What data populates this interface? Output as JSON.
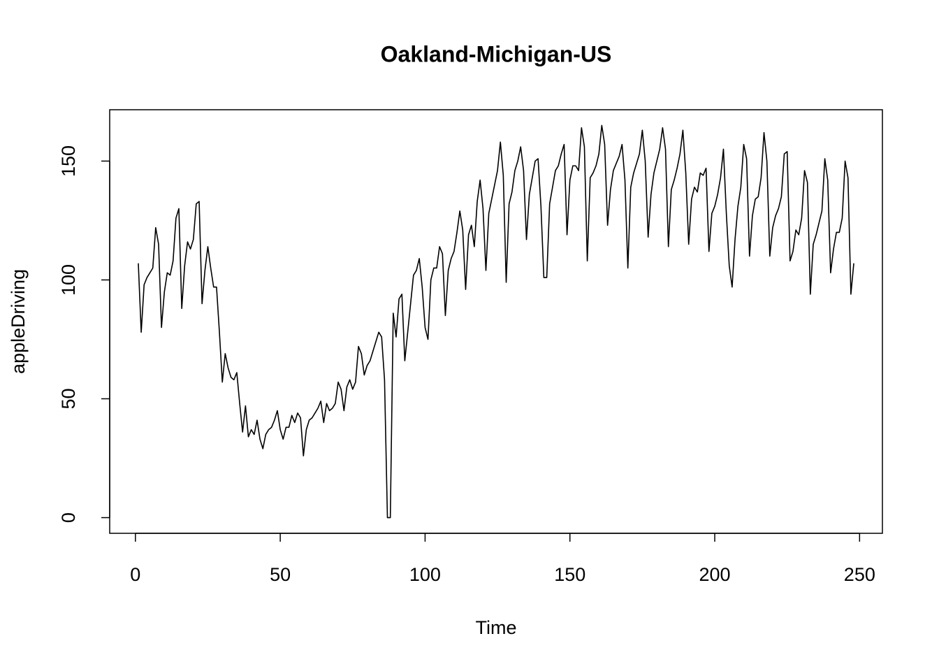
{
  "chart_data": {
    "type": "line",
    "title": "Oakland-Michigan-US",
    "x_label": "Time",
    "y_label": "appleDriving",
    "color": "#000000",
    "x": [
      1,
      2,
      3,
      4,
      5,
      6,
      7,
      8,
      9,
      10,
      11,
      12,
      13,
      14,
      15,
      16,
      17,
      18,
      19,
      20,
      21,
      22,
      23,
      24,
      25,
      26,
      27,
      28,
      29,
      30,
      31,
      32,
      33,
      34,
      35,
      36,
      37,
      38,
      39,
      40,
      41,
      42,
      43,
      44,
      45,
      46,
      47,
      48,
      49,
      50,
      51,
      52,
      53,
      54,
      55,
      56,
      57,
      58,
      59,
      60,
      61,
      62,
      63,
      64,
      65,
      66,
      67,
      68,
      69,
      70,
      71,
      72,
      73,
      74,
      75,
      76,
      77,
      78,
      79,
      80,
      81,
      82,
      83,
      84,
      85,
      86,
      87,
      88,
      89,
      90,
      91,
      92,
      93,
      94,
      95,
      96,
      97,
      98,
      99,
      100,
      101,
      102,
      103,
      104,
      105,
      106,
      107,
      108,
      109,
      110,
      111,
      112,
      113,
      114,
      115,
      116,
      117,
      118,
      119,
      120,
      121,
      122,
      123,
      124,
      125,
      126,
      127,
      128,
      129,
      130,
      131,
      132,
      133,
      134,
      135,
      136,
      137,
      138,
      139,
      140,
      141,
      142,
      143,
      144,
      145,
      146,
      147,
      148,
      149,
      150,
      151,
      152,
      153,
      154,
      155,
      156,
      157,
      158,
      159,
      160,
      161,
      162,
      163,
      164,
      165,
      166,
      167,
      168,
      169,
      170,
      171,
      172,
      173,
      174,
      175,
      176,
      177,
      178,
      179,
      180,
      181,
      182,
      183,
      184,
      185,
      186,
      187,
      188,
      189,
      190,
      191,
      192,
      193,
      194,
      195,
      196,
      197,
      198,
      199,
      200,
      201,
      202,
      203,
      204,
      205,
      206,
      207,
      208,
      209,
      210,
      211,
      212,
      213,
      214,
      215,
      216,
      217,
      218,
      219,
      220,
      221,
      222,
      223,
      224,
      225,
      226,
      227,
      228,
      229,
      230,
      231,
      232,
      233,
      234,
      235,
      236,
      237,
      238,
      239,
      240,
      241,
      242,
      243,
      244,
      245,
      246,
      247,
      248
    ],
    "values": [
      107,
      78,
      98,
      101,
      103,
      105,
      122,
      115,
      80,
      95,
      103,
      102,
      108,
      126,
      130,
      88,
      106,
      116,
      113,
      117,
      132,
      133,
      90,
      104,
      114,
      105,
      97,
      97,
      78,
      57,
      69,
      63,
      59,
      58,
      61,
      48,
      36,
      47,
      34,
      37,
      35,
      41,
      33,
      29,
      35,
      37,
      38,
      41,
      45,
      37,
      33,
      38,
      38,
      43,
      40,
      44,
      42,
      26,
      37,
      41,
      42,
      44,
      46,
      49,
      40,
      48,
      45,
      46,
      48,
      57,
      54,
      45,
      55,
      58,
      54,
      57,
      72,
      69,
      60,
      64,
      66,
      70,
      74,
      78,
      76,
      58,
      0,
      0,
      86,
      76,
      92,
      94,
      66,
      78,
      90,
      102,
      104,
      109,
      97,
      80,
      75,
      100,
      105,
      105,
      114,
      111,
      85,
      104,
      109,
      112,
      120,
      129,
      121,
      96,
      119,
      123,
      114,
      133,
      142,
      130,
      104,
      128,
      134,
      140,
      146,
      158,
      144,
      99,
      132,
      137,
      146,
      150,
      156,
      146,
      117,
      136,
      143,
      150,
      151,
      131,
      101,
      101,
      132,
      139,
      146,
      148,
      153,
      157,
      119,
      142,
      148,
      148,
      146,
      164,
      156,
      108,
      143,
      145,
      148,
      153,
      165,
      157,
      123,
      138,
      146,
      149,
      152,
      157,
      142,
      105,
      139,
      145,
      149,
      153,
      163,
      150,
      118,
      136,
      145,
      150,
      155,
      164,
      155,
      114,
      138,
      142,
      147,
      153,
      163,
      145,
      115,
      134,
      139,
      137,
      145,
      144,
      147,
      112,
      128,
      131,
      136,
      143,
      155,
      128,
      106,
      97,
      117,
      131,
      139,
      157,
      151,
      110,
      127,
      134,
      135,
      143,
      162,
      150,
      110,
      122,
      127,
      130,
      135,
      153,
      154,
      108,
      112,
      121,
      119,
      126,
      146,
      141,
      94,
      115,
      119,
      124,
      129,
      151,
      142,
      103,
      113,
      120,
      120,
      126,
      150,
      143,
      94,
      107
    ],
    "xlim": [
      -8.88,
      257.88
    ],
    "xticks": [
      0,
      50,
      100,
      150,
      200,
      250
    ],
    "ylim": [
      -6.6,
      171.6
    ],
    "yticks": [
      0,
      50,
      100,
      150
    ]
  }
}
